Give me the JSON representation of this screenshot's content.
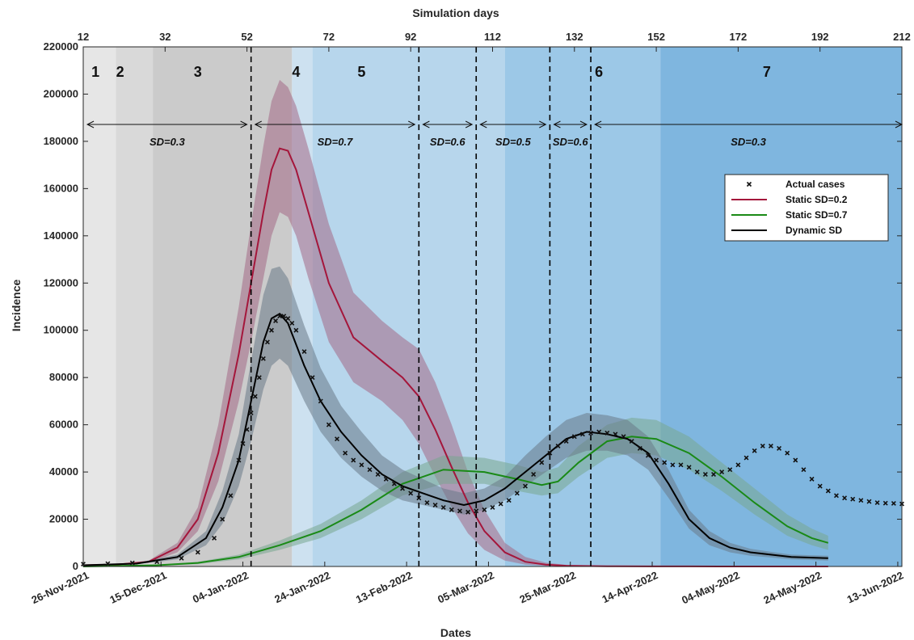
{
  "chart_data": {
    "type": "line",
    "xlabel": "Dates",
    "x2label": "Simulation days",
    "ylabel": "Incidence",
    "ylim": [
      0,
      220000
    ],
    "yticks": [
      0,
      20000,
      40000,
      60000,
      80000,
      100000,
      120000,
      140000,
      160000,
      180000,
      200000,
      220000
    ],
    "ytick_labels": [
      "0",
      "20000",
      "40000",
      "60000",
      "80000",
      "100000",
      "120000",
      "140000",
      "160000",
      "180000",
      "200000",
      "220000"
    ],
    "xlim_days": [
      12,
      212
    ],
    "top_ticks": [
      12,
      32,
      52,
      72,
      92,
      112,
      132,
      152,
      172,
      192,
      212
    ],
    "top_tick_labels": [
      "12",
      "32",
      "52",
      "72",
      "92",
      "112",
      "132",
      "152",
      "172",
      "192",
      "212"
    ],
    "bottom_ticks": [
      {
        "day": 12,
        "label": "26-Nov-2021"
      },
      {
        "day": 31,
        "label": "15-Dec-2021"
      },
      {
        "day": 51,
        "label": "04-Jan-2022"
      },
      {
        "day": 71,
        "label": "24-Jan-2022"
      },
      {
        "day": 91,
        "label": "13-Feb-2022"
      },
      {
        "day": 111,
        "label": "05-Mar-2022"
      },
      {
        "day": 131,
        "label": "25-Mar-2022"
      },
      {
        "day": 151,
        "label": "14-Apr-2022"
      },
      {
        "day": 171,
        "label": "04-May-2022"
      },
      {
        "day": 191,
        "label": "24-May-2022"
      },
      {
        "day": 211,
        "label": "13-Jun-2022"
      }
    ],
    "phases": [
      {
        "label": "1",
        "start": 12,
        "end": 20,
        "color": "#e6e6e6"
      },
      {
        "label": "2",
        "start": 20,
        "end": 29,
        "color": "#d9d9d9"
      },
      {
        "label": "3",
        "start": 29,
        "end": 63,
        "color": "#cbcbcb"
      },
      {
        "label": "4",
        "start": 63,
        "end": 68,
        "color": "#cde1f0"
      },
      {
        "label": "5",
        "start": 68,
        "end": 115,
        "color": "#b7d6ec"
      },
      {
        "label": "6",
        "start": 115,
        "end": 153,
        "color": "#9cc8e7"
      },
      {
        "label": "7",
        "start": 153,
        "end": 212,
        "color": "#7fb6df"
      }
    ],
    "phase_label_positions": [
      15,
      21,
      40,
      64,
      80,
      138,
      179
    ],
    "vlines": [
      53,
      94,
      108,
      126,
      136
    ],
    "sd_periods": [
      {
        "label": "SD=0.3",
        "start": 13,
        "end": 52
      },
      {
        "label": "SD=0.7",
        "start": 54,
        "end": 93
      },
      {
        "label": "SD=0.6",
        "start": 95,
        "end": 107
      },
      {
        "label": "SD=0.5",
        "start": 109,
        "end": 125
      },
      {
        "label": "SD=0.6",
        "start": 127,
        "end": 135
      },
      {
        "label": "SD=0.3",
        "start": 137,
        "end": 212
      }
    ],
    "series": [
      {
        "name": "Static SD=0.2",
        "color": "#a4163b",
        "band_color": "#a46a86",
        "x": [
          12,
          20,
          28,
          35,
          40,
          45,
          50,
          53,
          56,
          58,
          60,
          62,
          64,
          67,
          72,
          78,
          85,
          90,
          94,
          98,
          102,
          106,
          110,
          115,
          120,
          125,
          130,
          140,
          150,
          160,
          170,
          180,
          194
        ],
        "values": [
          500,
          800,
          2000,
          8000,
          20000,
          48000,
          90000,
          120000,
          150000,
          168000,
          177000,
          176000,
          168000,
          150000,
          120000,
          97000,
          87000,
          80000,
          72000,
          58000,
          42000,
          27000,
          15000,
          6000,
          2000,
          800,
          300,
          100,
          50,
          20,
          10,
          5,
          0
        ],
        "lower": [
          400,
          600,
          1500,
          6000,
          15000,
          36000,
          70000,
          95000,
          122000,
          140000,
          150000,
          148000,
          140000,
          122000,
          95000,
          78000,
          70000,
          62000,
          52000,
          38000,
          25000,
          14000,
          7000,
          2500,
          800,
          300,
          100,
          30,
          10,
          5,
          2,
          1,
          0
        ],
        "upper": [
          600,
          1000,
          2500,
          10000,
          25000,
          60000,
          110000,
          145000,
          178000,
          197000,
          206000,
          203000,
          195000,
          177000,
          145000,
          116000,
          104000,
          97000,
          92000,
          78000,
          60000,
          40000,
          24000,
          10000,
          4000,
          1600,
          700,
          250,
          120,
          60,
          30,
          15,
          5
        ]
      },
      {
        "name": "Static SD=0.7",
        "color": "#1a8a16",
        "band_color": "#78a890",
        "x": [
          12,
          30,
          40,
          50,
          60,
          70,
          80,
          90,
          100,
          110,
          118,
          124,
          128,
          133,
          140,
          146,
          152,
          160,
          168,
          176,
          184,
          190,
          194
        ],
        "values": [
          0,
          500,
          1500,
          4000,
          9000,
          15000,
          24000,
          35000,
          41000,
          40000,
          37000,
          34500,
          36000,
          44000,
          53000,
          55000,
          54000,
          48000,
          38000,
          27000,
          17000,
          12000,
          10000
        ],
        "lower": [
          0,
          300,
          1000,
          3000,
          7000,
          12000,
          20000,
          30000,
          35000,
          35000,
          32000,
          30000,
          31000,
          38000,
          46000,
          48000,
          47000,
          41000,
          32000,
          22000,
          13000,
          9000,
          7000
        ],
        "upper": [
          0,
          700,
          2000,
          5000,
          11000,
          18000,
          28000,
          40000,
          47000,
          46000,
          43000,
          40000,
          42000,
          51000,
          60000,
          63000,
          62000,
          55000,
          44000,
          33000,
          22000,
          16000,
          13000
        ]
      },
      {
        "name": "Dynamic SD",
        "color": "#000000",
        "band_color": "#6a7a88",
        "x": [
          12,
          25,
          35,
          42,
          46,
          50,
          53,
          56,
          58,
          60,
          62,
          66,
          70,
          75,
          80,
          85,
          90,
          95,
          100,
          105,
          110,
          115,
          120,
          125,
          130,
          135,
          140,
          145,
          150,
          155,
          160,
          165,
          170,
          175,
          180,
          185,
          194
        ],
        "values": [
          500,
          1200,
          4000,
          12000,
          25000,
          45000,
          70000,
          95000,
          105000,
          107000,
          103000,
          85000,
          70000,
          57000,
          47000,
          39000,
          34000,
          31000,
          28000,
          26000,
          28000,
          33000,
          40000,
          47000,
          54000,
          57000,
          56000,
          54000,
          48000,
          35000,
          20000,
          12000,
          8000,
          6000,
          5000,
          4000,
          3500
        ],
        "lower": [
          400,
          900,
          3000,
          9000,
          18000,
          34000,
          53000,
          75000,
          85000,
          88000,
          85000,
          70000,
          57000,
          46000,
          38000,
          32000,
          28000,
          26000,
          24000,
          22000,
          24000,
          28000,
          34000,
          40000,
          46000,
          49000,
          49000,
          47000,
          41000,
          29000,
          16000,
          9000,
          6000,
          4500,
          3800,
          3000,
          2500
        ],
        "upper": [
          600,
          1500,
          5000,
          15000,
          32000,
          56000,
          87000,
          115000,
          126000,
          127000,
          122000,
          102000,
          84000,
          68000,
          57000,
          47000,
          41000,
          37000,
          33000,
          31000,
          33000,
          38000,
          47000,
          55000,
          62000,
          65000,
          64000,
          62000,
          55000,
          41000,
          24000,
          15000,
          10000,
          7500,
          6200,
          5000,
          4500
        ]
      }
    ],
    "actual_cases": {
      "name": "Actual cases",
      "x": [
        12,
        18,
        24,
        30,
        36,
        40,
        44,
        46,
        48,
        50,
        51,
        52,
        53,
        54,
        55,
        56,
        57,
        58,
        59,
        60,
        61,
        62,
        63,
        64,
        66,
        68,
        70,
        72,
        74,
        76,
        78,
        80,
        82,
        84,
        86,
        88,
        90,
        92,
        94,
        96,
        98,
        100,
        102,
        104,
        106,
        108,
        110,
        112,
        114,
        116,
        118,
        120,
        122,
        124,
        126,
        128,
        130,
        132,
        134,
        136,
        138,
        140,
        142,
        144,
        146,
        148,
        150,
        152,
        154,
        156,
        158,
        160,
        162,
        164,
        166,
        168,
        170,
        172,
        174,
        176,
        178,
        180,
        182,
        184,
        186,
        188,
        190,
        192,
        194,
        196,
        198,
        200,
        202,
        204,
        206,
        208,
        210,
        212
      ],
      "values": [
        1000,
        1200,
        1500,
        2000,
        3500,
        6000,
        12000,
        20000,
        30000,
        45000,
        52000,
        58000,
        65000,
        72000,
        80000,
        88000,
        95000,
        100000,
        104000,
        106000,
        106000,
        105000,
        103000,
        100000,
        91000,
        80000,
        70000,
        60000,
        54000,
        48000,
        45000,
        43000,
        41000,
        39000,
        37000,
        35000,
        33000,
        31000,
        29000,
        27000,
        26000,
        25000,
        24000,
        23500,
        23000,
        23500,
        24000,
        25000,
        26500,
        28000,
        31000,
        34000,
        39000,
        44000,
        48000,
        51000,
        53000,
        55000,
        56000,
        56500,
        57000,
        56500,
        56000,
        55000,
        53000,
        50000,
        47000,
        45000,
        44000,
        43000,
        43000,
        42000,
        40000,
        39000,
        39000,
        40000,
        41000,
        43000,
        46000,
        49000,
        51000,
        51000,
        50000,
        48000,
        45000,
        41000,
        37000,
        34000,
        32000,
        30000,
        29000,
        28500,
        28000,
        27500,
        27000,
        26800,
        26700,
        26500
      ]
    },
    "legend": {
      "position": "upper-right",
      "entries": [
        "Actual cases",
        "Static SD=0.2",
        "Static SD=0.7",
        "Dynamic SD"
      ]
    },
    "grid": false
  }
}
